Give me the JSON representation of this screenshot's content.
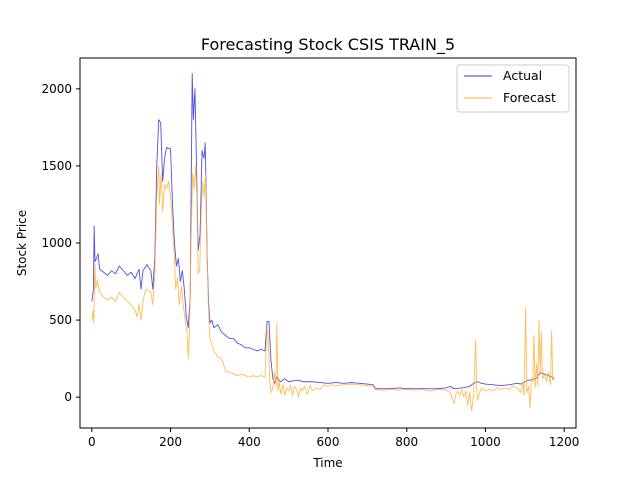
{
  "chart_data": {
    "type": "line",
    "title": "Forecasting Stock CSIS TRAIN_5",
    "xlabel": "Time",
    "ylabel": "Stock Price",
    "xlim": [
      -30,
      1230
    ],
    "ylim": [
      -200,
      2200
    ],
    "xticks": [
      0,
      200,
      400,
      600,
      800,
      1000,
      1200
    ],
    "yticks": [
      0,
      500,
      1000,
      1500,
      2000
    ],
    "grid": false,
    "legend_position": "top-right",
    "series": [
      {
        "name": "Actual",
        "color": "#3333dd",
        "points": [
          [
            0,
            620
          ],
          [
            4,
            700
          ],
          [
            6,
            1110
          ],
          [
            8,
            880
          ],
          [
            12,
            900
          ],
          [
            16,
            930
          ],
          [
            20,
            830
          ],
          [
            30,
            810
          ],
          [
            40,
            790
          ],
          [
            50,
            820
          ],
          [
            60,
            800
          ],
          [
            70,
            850
          ],
          [
            80,
            820
          ],
          [
            90,
            790
          ],
          [
            100,
            810
          ],
          [
            110,
            770
          ],
          [
            120,
            830
          ],
          [
            125,
            700
          ],
          [
            130,
            820
          ],
          [
            140,
            860
          ],
          [
            150,
            820
          ],
          [
            155,
            700
          ],
          [
            160,
            900
          ],
          [
            165,
            1500
          ],
          [
            170,
            1800
          ],
          [
            175,
            1780
          ],
          [
            180,
            1400
          ],
          [
            185,
            1550
          ],
          [
            190,
            1620
          ],
          [
            200,
            1610
          ],
          [
            205,
            1250
          ],
          [
            210,
            1000
          ],
          [
            215,
            850
          ],
          [
            220,
            900
          ],
          [
            225,
            750
          ],
          [
            230,
            820
          ],
          [
            235,
            700
          ],
          [
            240,
            520
          ],
          [
            245,
            450
          ],
          [
            250,
            650
          ],
          [
            255,
            2100
          ],
          [
            258,
            1800
          ],
          [
            262,
            2000
          ],
          [
            266,
            1500
          ],
          [
            270,
            950
          ],
          [
            275,
            1050
          ],
          [
            280,
            1600
          ],
          [
            285,
            1550
          ],
          [
            288,
            1650
          ],
          [
            290,
            1400
          ],
          [
            293,
            900
          ],
          [
            297,
            600
          ],
          [
            300,
            480
          ],
          [
            305,
            500
          ],
          [
            310,
            450
          ],
          [
            320,
            470
          ],
          [
            330,
            420
          ],
          [
            340,
            400
          ],
          [
            350,
            380
          ],
          [
            360,
            380
          ],
          [
            370,
            350
          ],
          [
            380,
            340
          ],
          [
            390,
            320
          ],
          [
            400,
            320
          ],
          [
            410,
            310
          ],
          [
            420,
            300
          ],
          [
            430,
            310
          ],
          [
            440,
            300
          ],
          [
            445,
            490
          ],
          [
            450,
            490
          ],
          [
            455,
            240
          ],
          [
            460,
            120
          ],
          [
            465,
            90
          ],
          [
            470,
            130
          ],
          [
            475,
            110
          ],
          [
            480,
            100
          ],
          [
            490,
            120
          ],
          [
            500,
            100
          ],
          [
            520,
            110
          ],
          [
            540,
            100
          ],
          [
            560,
            100
          ],
          [
            580,
            95
          ],
          [
            600,
            90
          ],
          [
            620,
            95
          ],
          [
            640,
            90
          ],
          [
            660,
            95
          ],
          [
            680,
            90
          ],
          [
            700,
            85
          ],
          [
            715,
            80
          ],
          [
            720,
            55
          ],
          [
            740,
            55
          ],
          [
            760,
            55
          ],
          [
            780,
            60
          ],
          [
            800,
            55
          ],
          [
            820,
            55
          ],
          [
            840,
            55
          ],
          [
            860,
            55
          ],
          [
            880,
            55
          ],
          [
            900,
            60
          ],
          [
            910,
            70
          ],
          [
            920,
            55
          ],
          [
            940,
            60
          ],
          [
            960,
            70
          ],
          [
            970,
            90
          ],
          [
            980,
            100
          ],
          [
            990,
            90
          ],
          [
            1000,
            85
          ],
          [
            1020,
            80
          ],
          [
            1040,
            75
          ],
          [
            1060,
            80
          ],
          [
            1080,
            90
          ],
          [
            1090,
            85
          ],
          [
            1100,
            100
          ],
          [
            1110,
            110
          ],
          [
            1120,
            115
          ],
          [
            1130,
            125
          ],
          [
            1140,
            160
          ],
          [
            1150,
            150
          ],
          [
            1160,
            140
          ],
          [
            1170,
            130
          ],
          [
            1175,
            120
          ]
        ]
      },
      {
        "name": "Forecast",
        "color": "#ffb13b",
        "points": [
          [
            0,
            500
          ],
          [
            3,
            560
          ],
          [
            5,
            480
          ],
          [
            8,
            870
          ],
          [
            10,
            700
          ],
          [
            14,
            760
          ],
          [
            20,
            680
          ],
          [
            30,
            650
          ],
          [
            40,
            630
          ],
          [
            50,
            650
          ],
          [
            60,
            620
          ],
          [
            70,
            680
          ],
          [
            80,
            650
          ],
          [
            90,
            620
          ],
          [
            100,
            600
          ],
          [
            110,
            560
          ],
          [
            115,
            520
          ],
          [
            120,
            600
          ],
          [
            125,
            500
          ],
          [
            130,
            620
          ],
          [
            135,
            680
          ],
          [
            140,
            700
          ],
          [
            150,
            680
          ],
          [
            155,
            600
          ],
          [
            160,
            800
          ],
          [
            165,
            1300
          ],
          [
            170,
            1500
          ],
          [
            172,
            1250
          ],
          [
            176,
            1450
          ],
          [
            180,
            1200
          ],
          [
            185,
            1380
          ],
          [
            190,
            1350
          ],
          [
            195,
            1400
          ],
          [
            200,
            1300
          ],
          [
            205,
            1100
          ],
          [
            210,
            900
          ],
          [
            213,
            700
          ],
          [
            218,
            780
          ],
          [
            222,
            600
          ],
          [
            228,
            720
          ],
          [
            232,
            600
          ],
          [
            237,
            500
          ],
          [
            242,
            420
          ],
          [
            245,
            250
          ],
          [
            248,
            400
          ],
          [
            252,
            1000
          ],
          [
            256,
            1450
          ],
          [
            260,
            1350
          ],
          [
            264,
            1500
          ],
          [
            267,
            1300
          ],
          [
            270,
            800
          ],
          [
            274,
            820
          ],
          [
            278,
            1200
          ],
          [
            282,
            1400
          ],
          [
            286,
            1300
          ],
          [
            289,
            1450
          ],
          [
            292,
            1000
          ],
          [
            296,
            600
          ],
          [
            300,
            380
          ],
          [
            310,
            300
          ],
          [
            320,
            260
          ],
          [
            330,
            250
          ],
          [
            340,
            170
          ],
          [
            350,
            160
          ],
          [
            360,
            150
          ],
          [
            370,
            140
          ],
          [
            380,
            150
          ],
          [
            390,
            140
          ],
          [
            400,
            130
          ],
          [
            410,
            140
          ],
          [
            420,
            130
          ],
          [
            430,
            140
          ],
          [
            440,
            130
          ],
          [
            445,
            450
          ],
          [
            448,
            380
          ],
          [
            452,
            100
          ],
          [
            456,
            30
          ],
          [
            460,
            60
          ],
          [
            464,
            160
          ],
          [
            468,
            70
          ],
          [
            470,
            480
          ],
          [
            473,
            40
          ],
          [
            476,
            100
          ],
          [
            480,
            20
          ],
          [
            486,
            80
          ],
          [
            490,
            10
          ],
          [
            495,
            60
          ],
          [
            500,
            40
          ],
          [
            505,
            80
          ],
          [
            510,
            10
          ],
          [
            515,
            70
          ],
          [
            520,
            50
          ],
          [
            525,
            0
          ],
          [
            530,
            60
          ],
          [
            535,
            40
          ],
          [
            540,
            70
          ],
          [
            548,
            20
          ],
          [
            555,
            80
          ],
          [
            560,
            40
          ],
          [
            570,
            60
          ],
          [
            580,
            50
          ],
          [
            590,
            80
          ],
          [
            600,
            70
          ],
          [
            610,
            80
          ],
          [
            620,
            75
          ],
          [
            640,
            80
          ],
          [
            660,
            85
          ],
          [
            680,
            80
          ],
          [
            700,
            75
          ],
          [
            715,
            70
          ],
          [
            720,
            50
          ],
          [
            740,
            45
          ],
          [
            760,
            50
          ],
          [
            780,
            45
          ],
          [
            800,
            50
          ],
          [
            820,
            45
          ],
          [
            840,
            50
          ],
          [
            860,
            40
          ],
          [
            880,
            50
          ],
          [
            900,
            45
          ],
          [
            910,
            30
          ],
          [
            920,
            -40
          ],
          [
            925,
            20
          ],
          [
            930,
            40
          ],
          [
            935,
            10
          ],
          [
            940,
            50
          ],
          [
            945,
            0
          ],
          [
            950,
            40
          ],
          [
            955,
            -50
          ],
          [
            960,
            30
          ],
          [
            965,
            -90
          ],
          [
            970,
            20
          ],
          [
            975,
            370
          ],
          [
            978,
            40
          ],
          [
            980,
            -20
          ],
          [
            985,
            30
          ],
          [
            990,
            60
          ],
          [
            1000,
            40
          ],
          [
            1010,
            50
          ],
          [
            1020,
            40
          ],
          [
            1030,
            60
          ],
          [
            1040,
            50
          ],
          [
            1050,
            60
          ],
          [
            1060,
            50
          ],
          [
            1070,
            70
          ],
          [
            1080,
            60
          ],
          [
            1090,
            30
          ],
          [
            1095,
            100
          ],
          [
            1098,
            10
          ],
          [
            1102,
            580
          ],
          [
            1105,
            30
          ],
          [
            1110,
            70
          ],
          [
            1113,
            -70
          ],
          [
            1117,
            120
          ],
          [
            1120,
            100
          ],
          [
            1123,
            400
          ],
          [
            1126,
            60
          ],
          [
            1130,
            220
          ],
          [
            1133,
            70
          ],
          [
            1136,
            500
          ],
          [
            1139,
            150
          ],
          [
            1142,
            420
          ],
          [
            1145,
            120
          ],
          [
            1150,
            150
          ],
          [
            1155,
            100
          ],
          [
            1160,
            160
          ],
          [
            1165,
            80
          ],
          [
            1168,
            430
          ],
          [
            1171,
            110
          ],
          [
            1175,
            120
          ]
        ]
      }
    ]
  }
}
